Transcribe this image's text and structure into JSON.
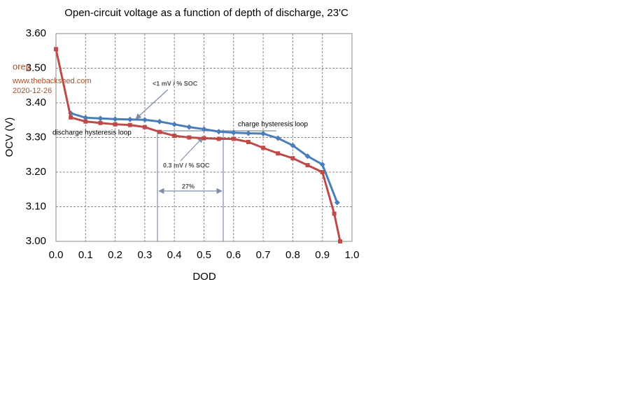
{
  "chart_data": {
    "type": "line",
    "title": "Open-circuit voltage as a function of depth of discharge, 23'C",
    "x_label": "DOD",
    "y_label": "OCV (V)",
    "xlim": [
      0,
      1
    ],
    "xticks": [
      {
        "value": 0,
        "label": "0.0"
      },
      0.1,
      0.2,
      0.3,
      0.4,
      0.5,
      0.6,
      0.7,
      0.8,
      0.9,
      {
        "value": 1,
        "label": "1.0"
      }
    ],
    "ylim": [
      3,
      3.6
    ],
    "yticks": [
      {
        "value": 3,
        "label": "3.00"
      },
      {
        "value": 3.1,
        "label": "3.10"
      },
      {
        "value": 3.2,
        "label": "3.20"
      },
      {
        "value": 3.3,
        "label": "3.30"
      },
      {
        "value": 3.4,
        "label": "3.40"
      },
      {
        "value": 3.5,
        "label": "3.50"
      },
      {
        "value": 3.6,
        "label": "3.60"
      }
    ],
    "grid": true,
    "series": [
      {
        "name": "charge hysteresis loop",
        "color": "#4a7ebb",
        "marker": "diamond",
        "x": [
          0.05,
          0.1,
          0.15,
          0.2,
          0.25,
          0.3,
          0.35,
          0.4,
          0.45,
          0.5,
          0.55,
          0.6,
          0.65,
          0.7,
          0.75,
          0.8,
          0.85,
          0.9,
          0.95
        ],
        "values": [
          3.37,
          3.357,
          3.355,
          3.353,
          3.352,
          3.351,
          3.346,
          3.338,
          3.33,
          3.324,
          3.317,
          3.314,
          3.312,
          3.311,
          3.298,
          3.277,
          3.246,
          3.222,
          3.112
        ]
      },
      {
        "name": "discharge hysteresis loop",
        "color": "#be4b48",
        "marker": "square",
        "x": [
          0,
          0.05,
          0.1,
          0.15,
          0.2,
          0.25,
          0.3,
          0.35,
          0.4,
          0.45,
          0.5,
          0.55,
          0.6,
          0.65,
          0.7,
          0.75,
          0.8,
          0.85,
          0.9,
          0.94,
          0.96
        ],
        "values": [
          3.555,
          3.358,
          3.346,
          3.342,
          3.338,
          3.336,
          3.33,
          3.316,
          3.305,
          3.3,
          3.298,
          3.296,
          3.296,
          3.287,
          3.27,
          3.254,
          3.24,
          3.22,
          3.2,
          3.08,
          3.0
        ]
      }
    ],
    "annotations": [
      "<1 mV / % SOC",
      "0.3 mV / % SOC",
      "27%"
    ],
    "watermark": [
      "orep",
      "www.thebackshed.com",
      "2020-12-26"
    ]
  }
}
